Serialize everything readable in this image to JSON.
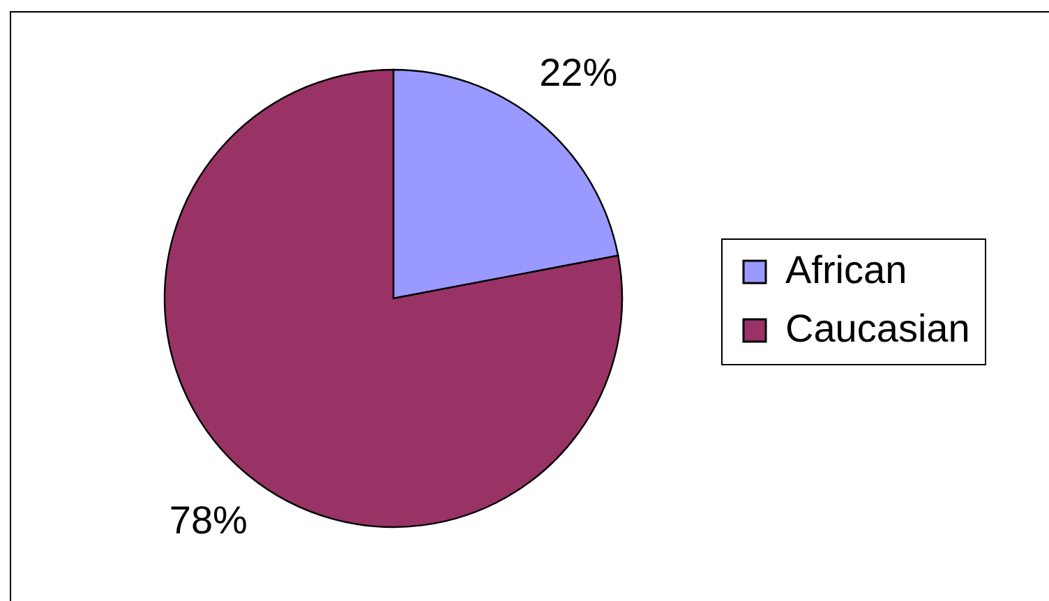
{
  "chart_data": {
    "type": "pie",
    "categories": [
      "African",
      "Caucasian"
    ],
    "values": [
      22,
      78
    ],
    "colors": [
      "#9999ff",
      "#993366"
    ],
    "value_labels": [
      "22%",
      "78%"
    ],
    "legend": "right"
  }
}
